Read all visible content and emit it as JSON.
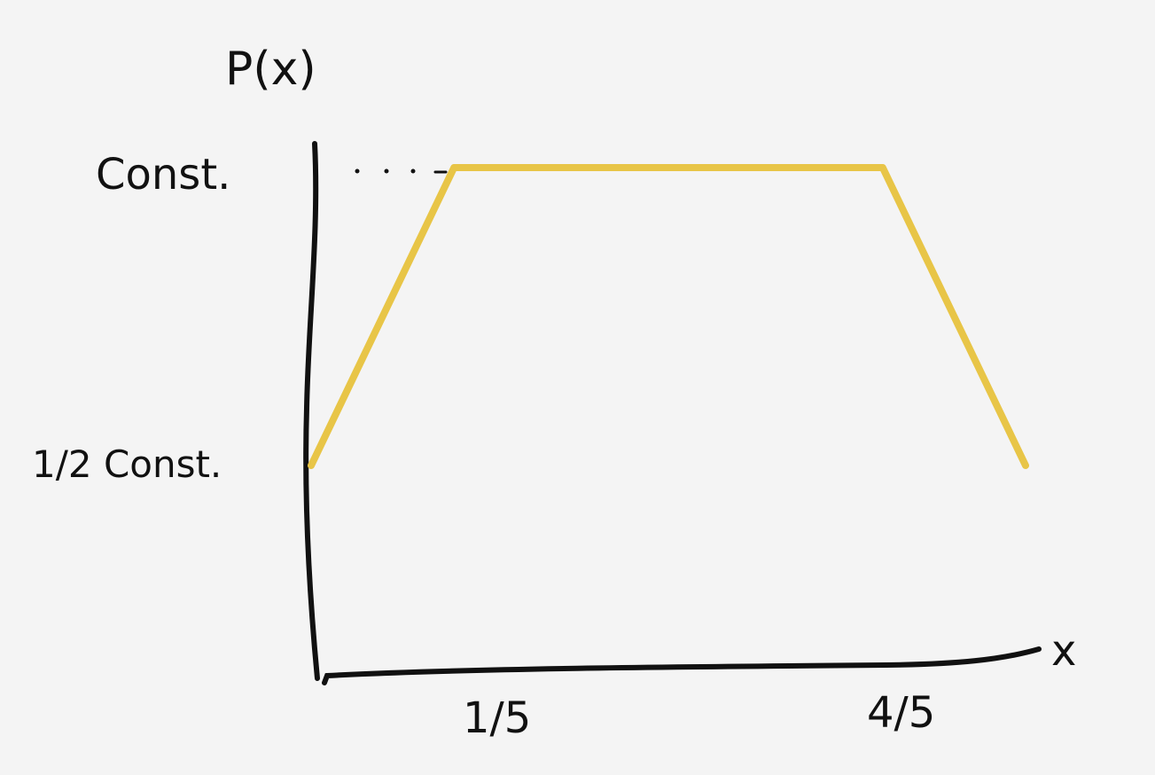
{
  "chart_data": {
    "type": "line",
    "ylabel": "P(x)",
    "xlabel": "x",
    "x_tick_labels": [
      "1/5",
      "4/5"
    ],
    "y_tick_labels": [
      "1/2 Const.",
      "Const."
    ],
    "series": [
      {
        "points": [
          {
            "x": 0.0,
            "y": 0.5
          },
          {
            "x": 0.2,
            "y": 1.0
          },
          {
            "x": 0.8,
            "y": 1.0
          },
          {
            "x": 1.0,
            "y": 0.5
          }
        ]
      }
    ],
    "xlim": [
      0,
      1.0
    ],
    "ylim": [
      0,
      1.0
    ],
    "grid": false,
    "colors": {
      "axes": "#111111",
      "series": "#e8c547",
      "background": "#f4f4f4"
    }
  }
}
